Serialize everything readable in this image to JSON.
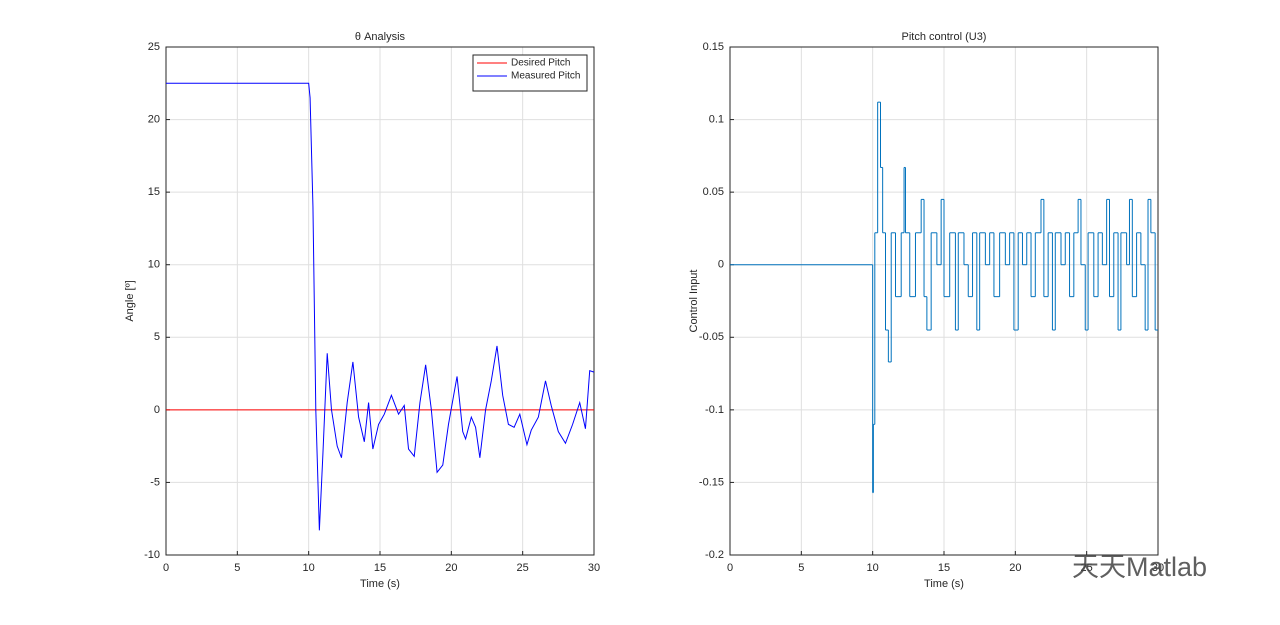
{
  "chart_data": [
    {
      "type": "line",
      "title": "θ Analysis",
      "x_label": "Time (s)",
      "y_label": "Angle [º]",
      "xlim": [
        0,
        30
      ],
      "ylim": [
        -10,
        25
      ],
      "xticks": [
        0,
        5,
        10,
        15,
        20,
        25,
        30
      ],
      "yticks": [
        -10,
        -5,
        0,
        5,
        10,
        15,
        20,
        25
      ],
      "grid": true,
      "legend": "northeast",
      "series": [
        {
          "name": "Desired Pitch",
          "color": "#ff0000",
          "x": [
            0,
            30
          ],
          "values": [
            0,
            0
          ]
        },
        {
          "name": "Measured Pitch",
          "color": "#0000ff",
          "x": [
            0,
            10,
            10.1,
            10.3,
            10.5,
            10.75,
            11,
            11.3,
            11.6,
            12,
            12.3,
            12.7,
            13.1,
            13.5,
            13.9,
            14.2,
            14.5,
            14.9,
            15.3,
            15.8,
            16.3,
            16.7,
            17,
            17.4,
            17.8,
            18.2,
            18.6,
            19,
            19.4,
            19.8,
            20.4,
            20.8,
            21,
            21.4,
            21.7,
            22,
            22.4,
            22.8,
            23.2,
            23.6,
            24,
            24.4,
            24.8,
            25.3,
            25.6,
            26.1,
            26.6,
            27,
            27.5,
            28,
            28.5,
            29,
            29.4,
            29.7,
            30
          ],
          "values": [
            22.5,
            22.5,
            21.5,
            14,
            0,
            -8.3,
            -3,
            3.9,
            0,
            -2.5,
            -3.3,
            0.5,
            3.3,
            -0.5,
            -2.2,
            0.5,
            -2.7,
            -1.0,
            -0.3,
            1.0,
            -0.3,
            0.3,
            -2.7,
            -3.2,
            0.5,
            3.1,
            0,
            -4.3,
            -3.8,
            -1,
            2.3,
            -1.5,
            -2.0,
            -0.5,
            -1.2,
            -3.3,
            0,
            2.0,
            4.4,
            1,
            -1.0,
            -1.2,
            -0.3,
            -2.4,
            -1.4,
            -0.5,
            2.0,
            0.3,
            -1.5,
            -2.3,
            -1.0,
            0.5,
            -1.3,
            2.7,
            2.6
          ]
        }
      ]
    },
    {
      "type": "step",
      "title": "Pitch control (U3)",
      "x_label": "Time (s)",
      "y_label": "Control Input",
      "xlim": [
        0,
        30
      ],
      "ylim": [
        -0.2,
        0.15
      ],
      "xticks": [
        0,
        5,
        10,
        15,
        20,
        25,
        30
      ],
      "yticks": [
        -0.2,
        -0.15,
        -0.1,
        -0.05,
        0,
        0.05,
        0.1,
        0.15
      ],
      "grid": true,
      "watermark": "天天Matlab",
      "series": [
        {
          "name": "U3",
          "color": "#0072bd",
          "x": [
            0,
            10,
            10.05,
            10.15,
            10.35,
            10.55,
            10.7,
            10.9,
            11.1,
            11.3,
            11.6,
            12,
            12.2,
            12.3,
            12.6,
            13,
            13.4,
            13.6,
            13.8,
            14.1,
            14.5,
            14.8,
            15,
            15.4,
            15.8,
            16,
            16.4,
            16.7,
            17,
            17.3,
            17.5,
            17.9,
            18.2,
            18.5,
            18.9,
            19.3,
            19.6,
            19.9,
            20.2,
            20.5,
            20.8,
            21.1,
            21.4,
            21.8,
            22,
            22.3,
            22.6,
            22.8,
            23.2,
            23.5,
            23.8,
            24.1,
            24.4,
            24.6,
            24.9,
            25.1,
            25.5,
            25.8,
            26.1,
            26.4,
            26.6,
            26.9,
            27.2,
            27.4,
            27.8,
            28,
            28.2,
            28.5,
            28.8,
            29.1,
            29.3,
            29.5,
            29.8
          ],
          "values": [
            0,
            -0.157,
            -0.11,
            0.022,
            0.112,
            0.067,
            0.022,
            -0.045,
            -0.067,
            0.022,
            -0.022,
            0.022,
            0.067,
            0.022,
            -0.022,
            0.022,
            0.045,
            -0.022,
            -0.045,
            0.022,
            0,
            0.045,
            -0.022,
            0.022,
            -0.045,
            0.022,
            0,
            -0.022,
            0.022,
            -0.045,
            0.022,
            0,
            0.022,
            -0.022,
            0.022,
            0,
            0.022,
            -0.045,
            0.022,
            0,
            0.022,
            -0.022,
            0.022,
            0.045,
            -0.022,
            0.022,
            -0.045,
            0.022,
            0,
            0.022,
            -0.022,
            0.022,
            0.045,
            0,
            -0.045,
            0.022,
            -0.022,
            0.022,
            0,
            0.045,
            -0.022,
            0.022,
            -0.045,
            0.022,
            0,
            0.045,
            -0.022,
            0.022,
            0,
            -0.045,
            0.045,
            0.022,
            -0.045
          ]
        }
      ]
    }
  ]
}
